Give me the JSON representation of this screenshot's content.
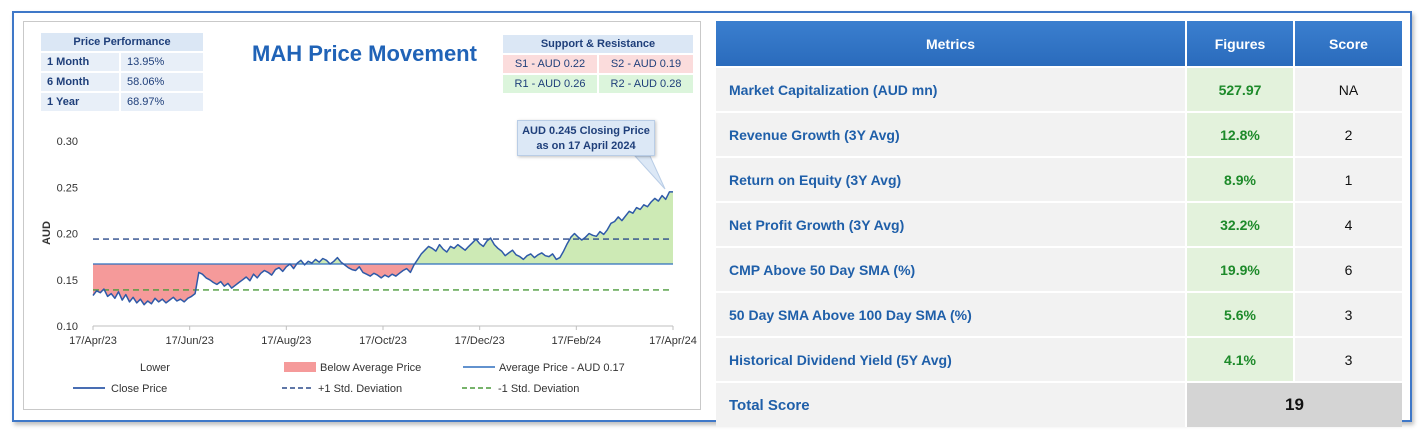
{
  "chart_title": "MAH Price Movement",
  "price_performance": {
    "header": "Price Performance",
    "rows": [
      {
        "label": "1 Month",
        "value": "13.95%"
      },
      {
        "label": "6 Month",
        "value": "58.06%"
      },
      {
        "label": "1 Year",
        "value": "68.97%"
      }
    ]
  },
  "support_resistance": {
    "header": "Support & Resistance",
    "s1": "S1 - AUD 0.22",
    "s2": "S2 - AUD 0.19",
    "r1": "R1 - AUD 0.26",
    "r2": "R2 - AUD 0.28"
  },
  "callout": {
    "line1": "AUD 0.245 Closing Price",
    "line2": "as on 17 April 2024"
  },
  "colors": {
    "close_line": "#2f5aa8",
    "below_fill": "#f59a9a",
    "above_fill": "#cdeab5",
    "average_line": "#2f6fbd",
    "plus_std": "#2b4a8a",
    "minus_std": "#4a9a3a"
  },
  "chart_data": {
    "type": "line",
    "title": "MAH Price Movement",
    "ylabel": "AUD",
    "ylim": [
      0.1,
      0.3
    ],
    "yticks": [
      "0.30",
      "0.25",
      "0.20",
      "0.15",
      "0.10"
    ],
    "ytick_values": [
      0.3,
      0.25,
      0.2,
      0.15,
      0.1
    ],
    "xticks": [
      "17/Apr/23",
      "17/Jun/23",
      "17/Aug/23",
      "17/Oct/23",
      "17/Dec/23",
      "17/Feb/24",
      "17/Apr/24"
    ],
    "average": 0.167,
    "plus_std": 0.194,
    "minus_std": 0.139,
    "close_price": [
      0.133,
      0.138,
      0.136,
      0.14,
      0.132,
      0.135,
      0.13,
      0.137,
      0.128,
      0.134,
      0.126,
      0.131,
      0.125,
      0.129,
      0.123,
      0.127,
      0.124,
      0.13,
      0.126,
      0.129,
      0.125,
      0.128,
      0.131,
      0.127,
      0.129,
      0.126,
      0.13,
      0.132,
      0.135,
      0.158,
      0.156,
      0.152,
      0.15,
      0.147,
      0.145,
      0.148,
      0.143,
      0.146,
      0.141,
      0.144,
      0.147,
      0.15,
      0.153,
      0.149,
      0.156,
      0.152,
      0.157,
      0.16,
      0.158,
      0.155,
      0.161,
      0.163,
      0.159,
      0.164,
      0.167,
      0.162,
      0.168,
      0.171,
      0.166,
      0.17,
      0.168,
      0.172,
      0.169,
      0.173,
      0.171,
      0.167,
      0.17,
      0.174,
      0.169,
      0.166,
      0.163,
      0.161,
      0.16,
      0.164,
      0.158,
      0.156,
      0.154,
      0.157,
      0.155,
      0.152,
      0.155,
      0.153,
      0.156,
      0.154,
      0.157,
      0.16,
      0.162,
      0.158,
      0.166,
      0.172,
      0.178,
      0.182,
      0.186,
      0.184,
      0.181,
      0.188,
      0.183,
      0.18,
      0.186,
      0.184,
      0.188,
      0.185,
      0.182,
      0.186,
      0.19,
      0.194,
      0.189,
      0.186,
      0.192,
      0.195,
      0.188,
      0.184,
      0.181,
      0.176,
      0.179,
      0.182,
      0.177,
      0.175,
      0.172,
      0.176,
      0.178,
      0.174,
      0.177,
      0.179,
      0.176,
      0.175,
      0.178,
      0.172,
      0.174,
      0.181,
      0.189,
      0.196,
      0.2,
      0.196,
      0.193,
      0.196,
      0.2,
      0.198,
      0.197,
      0.202,
      0.199,
      0.204,
      0.211,
      0.213,
      0.218,
      0.214,
      0.219,
      0.224,
      0.222,
      0.228,
      0.226,
      0.231,
      0.229,
      0.234,
      0.238,
      0.235,
      0.241,
      0.237,
      0.245,
      0.245
    ],
    "legend": [
      {
        "label": "Lower",
        "kind": "none"
      },
      {
        "label": "Below Average Price",
        "kind": "fill-below"
      },
      {
        "label": "Average Price - AUD 0.17",
        "kind": "avg-line"
      },
      {
        "label": "Close Price",
        "kind": "close-line"
      },
      {
        "label": "+1 Std. Deviation",
        "kind": "plus-std"
      },
      {
        "label": "-1 Std. Deviation",
        "kind": "minus-std"
      }
    ]
  },
  "metrics_table": {
    "headers": [
      "Metrics",
      "Figures",
      "Score"
    ],
    "rows": [
      {
        "metric": "Market Capitalization (AUD mn)",
        "figure": "527.97",
        "score": "NA"
      },
      {
        "metric": "Revenue Growth (3Y Avg)",
        "figure": "12.8%",
        "score": "2"
      },
      {
        "metric": "Return on Equity (3Y Avg)",
        "figure": "8.9%",
        "score": "1"
      },
      {
        "metric": "Net Profit Growth (3Y Avg)",
        "figure": "32.2%",
        "score": "4"
      },
      {
        "metric": "CMP Above 50 Day SMA (%)",
        "figure": "19.9%",
        "score": "6"
      },
      {
        "metric": "50 Day SMA Above 100 Day SMA (%)",
        "figure": "5.6%",
        "score": "3"
      },
      {
        "metric": "Historical Dividend Yield (5Y Avg)",
        "figure": "4.1%",
        "score": "3"
      }
    ],
    "total_label": "Total Score",
    "total_value": "19"
  }
}
